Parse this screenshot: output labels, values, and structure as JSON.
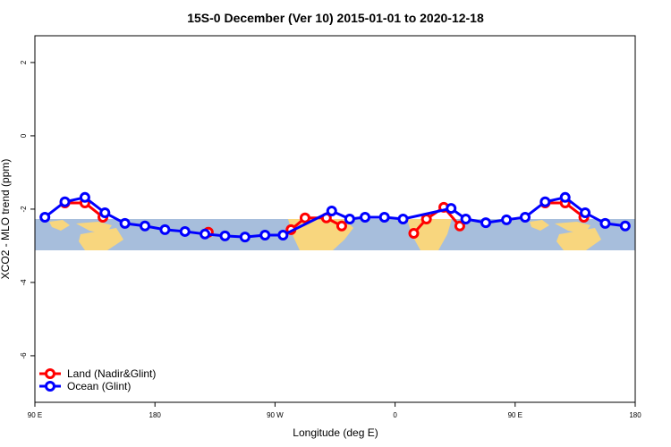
{
  "chart_data": {
    "type": "line",
    "title": "15S-0 December (Ver 10)   2015-01-01 to 2020-12-18",
    "x_label": "Longitude (deg E)",
    "y_label": "XCO2 - MLO trend (ppm)",
    "xlim": [
      90,
      540
    ],
    "xticks": [
      {
        "value": 90,
        "label": "90 E"
      },
      {
        "value": 180,
        "label": "180"
      },
      {
        "value": 270,
        "label": "90 W"
      },
      {
        "value": 360,
        "label": "0"
      },
      {
        "value": 450,
        "label": "90 E"
      },
      {
        "value": 540,
        "label": "180"
      }
    ],
    "ylim": [
      -7.27,
      2.73
    ],
    "yticks": [
      2,
      0,
      -2,
      -4,
      -6
    ],
    "legend": "bottom-left",
    "series": [
      {
        "name": "Land (Nadir&Glint)",
        "color": "#ff0000",
        "x": [
          112.5,
          127.5,
          141,
          null,
          220,
          null,
          282,
          292.5,
          308.5,
          320,
          null,
          374,
          383.5,
          396.5,
          408.5,
          null,
          472.5,
          487.5,
          501.5
        ],
        "values": [
          -1.83,
          -1.83,
          -2.22,
          null,
          -2.63,
          null,
          -2.56,
          -2.24,
          -2.24,
          -2.46,
          null,
          -2.66,
          -2.27,
          -1.95,
          -2.46,
          null,
          -1.83,
          -1.83,
          -2.22
        ]
      },
      {
        "name": "Ocean (Glint)",
        "color": "#0000ff",
        "x": [
          97.5,
          112.5,
          127.5,
          142.5,
          157.5,
          172.5,
          187.5,
          202.5,
          217.5,
          232.5,
          247.5,
          262.5,
          276,
          312.5,
          326,
          337.5,
          352,
          366,
          402,
          413,
          428,
          443.5,
          457.5,
          472.5,
          487.5,
          502.5,
          517.5,
          532.5
        ],
        "values": [
          -2.22,
          -1.8,
          -1.68,
          -2.1,
          -2.39,
          -2.46,
          -2.56,
          -2.61,
          -2.68,
          -2.73,
          -2.76,
          -2.71,
          -2.71,
          -2.05,
          -2.27,
          -2.22,
          -2.22,
          -2.27,
          -1.98,
          -2.27,
          -2.37,
          -2.29,
          -2.22,
          -1.8,
          -1.68,
          -2.1,
          -2.39,
          -2.46
        ]
      }
    ]
  }
}
